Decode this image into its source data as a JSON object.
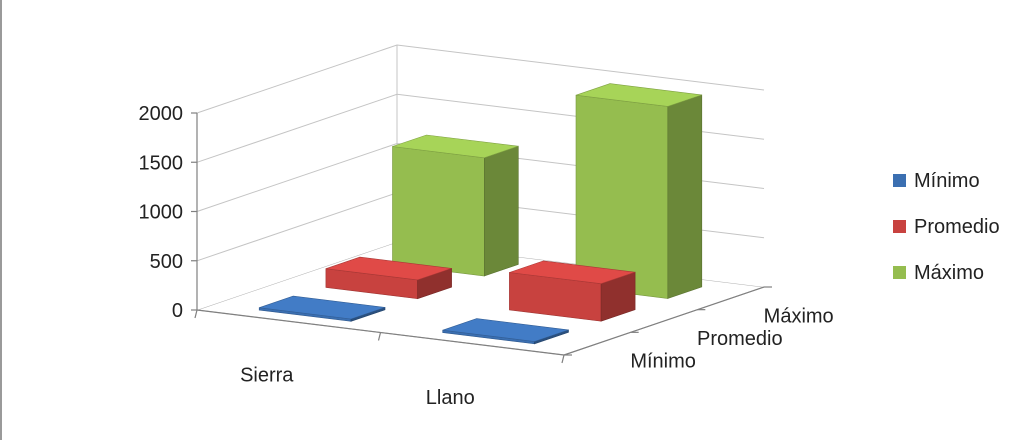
{
  "chart_data": {
    "type": "bar",
    "subtype": "3d-column",
    "title": "",
    "xlabel": "",
    "ylabel": "",
    "categories": [
      "Sierra",
      "Llano"
    ],
    "series": [
      {
        "name": "Mínimo",
        "values": [
          0,
          0
        ],
        "color": "#3b6fb1"
      },
      {
        "name": "Promedio",
        "values": [
          190,
          380
        ],
        "color": "#c8423f"
      },
      {
        "name": "Máximo",
        "values": [
          1200,
          1950
        ],
        "color": "#95bd4f"
      }
    ],
    "depth_labels": [
      "Mínimo",
      "Promedio",
      "Máximo"
    ],
    "ylim": [
      0,
      2000
    ],
    "yticks": [
      0,
      500,
      1000,
      1500,
      2000
    ],
    "grid": true,
    "legend_position": "right"
  }
}
